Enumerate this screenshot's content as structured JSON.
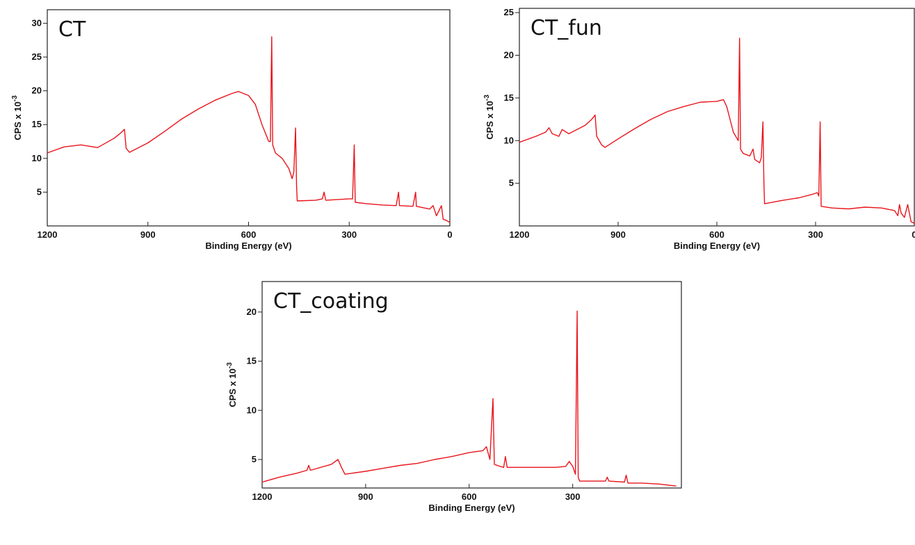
{
  "chart_data": [
    {
      "type": "line",
      "title": "CT",
      "x_label": "Binding Energy (eV)",
      "y_label": "CPS x 10",
      "y_label_exponent": "-3",
      "color": "#e8141b",
      "xlim": [
        1200,
        0
      ],
      "xticks": [
        1200,
        900,
        600,
        300,
        0
      ],
      "ylim": [
        0,
        32
      ],
      "yticks": [
        5,
        10,
        15,
        20,
        25,
        30
      ],
      "x": [
        1200,
        1150,
        1100,
        1050,
        1000,
        980,
        970,
        965,
        955,
        900,
        850,
        800,
        750,
        700,
        650,
        630,
        600,
        580,
        560,
        540,
        535,
        531,
        528,
        520,
        500,
        480,
        470,
        465,
        460,
        457,
        455,
        400,
        380,
        375,
        370,
        300,
        290,
        285,
        282,
        250,
        200,
        160,
        153,
        150,
        110,
        102,
        100,
        60,
        50,
        40,
        30,
        25,
        20,
        10,
        0
      ],
      "values": [
        10.8,
        11.7,
        12.0,
        11.6,
        13.0,
        13.8,
        14.3,
        11.5,
        10.9,
        12.3,
        14.0,
        15.8,
        17.3,
        18.6,
        19.6,
        19.9,
        19.3,
        18.0,
        15.0,
        12.5,
        12.5,
        28,
        12,
        10.8,
        10.0,
        8.5,
        7.0,
        8,
        14.5,
        6,
        3.7,
        3.8,
        4.0,
        5.0,
        3.8,
        4.0,
        4.0,
        12,
        3.5,
        3.3,
        3.1,
        3.0,
        5.0,
        3.0,
        2.9,
        5.0,
        2.9,
        2.5,
        3.0,
        1.5,
        2.5,
        3.0,
        1.0,
        0.8,
        0.5
      ]
    },
    {
      "type": "line",
      "title": "CT_fun",
      "x_label": "Binding Energy (eV)",
      "y_label": "CPS x 10",
      "y_label_exponent": "-3",
      "color": "#e8141b",
      "xlim": [
        1200,
        0
      ],
      "xticks": [
        1200,
        900,
        600,
        300,
        0
      ],
      "ylim": [
        0,
        25.5
      ],
      "yticks": [
        5,
        10,
        15,
        20,
        25
      ],
      "x": [
        1200,
        1150,
        1120,
        1110,
        1100,
        1080,
        1070,
        1050,
        1000,
        980,
        970,
        965,
        950,
        940,
        900,
        850,
        800,
        750,
        700,
        650,
        600,
        580,
        570,
        550,
        535,
        531,
        528,
        520,
        500,
        490,
        485,
        470,
        465,
        460,
        457,
        455,
        400,
        350,
        310,
        295,
        290,
        286,
        283,
        250,
        200,
        150,
        100,
        60,
        50,
        45,
        40,
        30,
        20,
        10,
        0
      ],
      "values": [
        9.8,
        10.5,
        11,
        11.5,
        10.8,
        10.5,
        11.3,
        10.8,
        11.8,
        12.5,
        13,
        10.5,
        9.5,
        9.2,
        10.2,
        11.4,
        12.5,
        13.4,
        14.0,
        14.5,
        14.6,
        14.8,
        14,
        11,
        10,
        22,
        9,
        8.5,
        8.2,
        9,
        7.8,
        7.4,
        8,
        12.2,
        5,
        2.6,
        3.0,
        3.3,
        3.7,
        3.9,
        3.5,
        12.2,
        2.3,
        2.1,
        2.0,
        2.2,
        2.1,
        1.8,
        1.2,
        2.5,
        1.5,
        1.0,
        2.5,
        0.5,
        0.3
      ]
    },
    {
      "type": "line",
      "title": "CT_coating",
      "x_label": "Binding Energy (eV)",
      "y_label": "CPS x 10",
      "y_label_exponent": "-3",
      "color": "#e8141b",
      "xlim": [
        1200,
        -15
      ],
      "xticks": [
        1200,
        900,
        600,
        300
      ],
      "ylim": [
        2.1,
        23.1
      ],
      "yticks": [
        5,
        10,
        15,
        20
      ],
      "x": [
        1200,
        1150,
        1100,
        1070,
        1065,
        1060,
        1000,
        980,
        970,
        960,
        940,
        900,
        850,
        800,
        750,
        700,
        650,
        600,
        560,
        550,
        540,
        531,
        527,
        510,
        500,
        495,
        490,
        450,
        400,
        350,
        320,
        310,
        300,
        292,
        287,
        284,
        280,
        250,
        205,
        200,
        195,
        150,
        145,
        140,
        100,
        50,
        0
      ],
      "values": [
        2.7,
        3.2,
        3.6,
        3.9,
        4.4,
        3.9,
        4.5,
        5.0,
        4.2,
        3.5,
        3.6,
        3.8,
        4.1,
        4.4,
        4.6,
        5.0,
        5.3,
        5.7,
        5.9,
        6.3,
        5.0,
        11.2,
        4.5,
        4.3,
        4.2,
        5.3,
        4.2,
        4.2,
        4.2,
        4.2,
        4.3,
        4.8,
        4.3,
        3.5,
        20.1,
        3.2,
        2.8,
        2.8,
        2.8,
        3.2,
        2.8,
        2.7,
        3.4,
        2.6,
        2.6,
        2.5,
        2.3
      ]
    }
  ]
}
